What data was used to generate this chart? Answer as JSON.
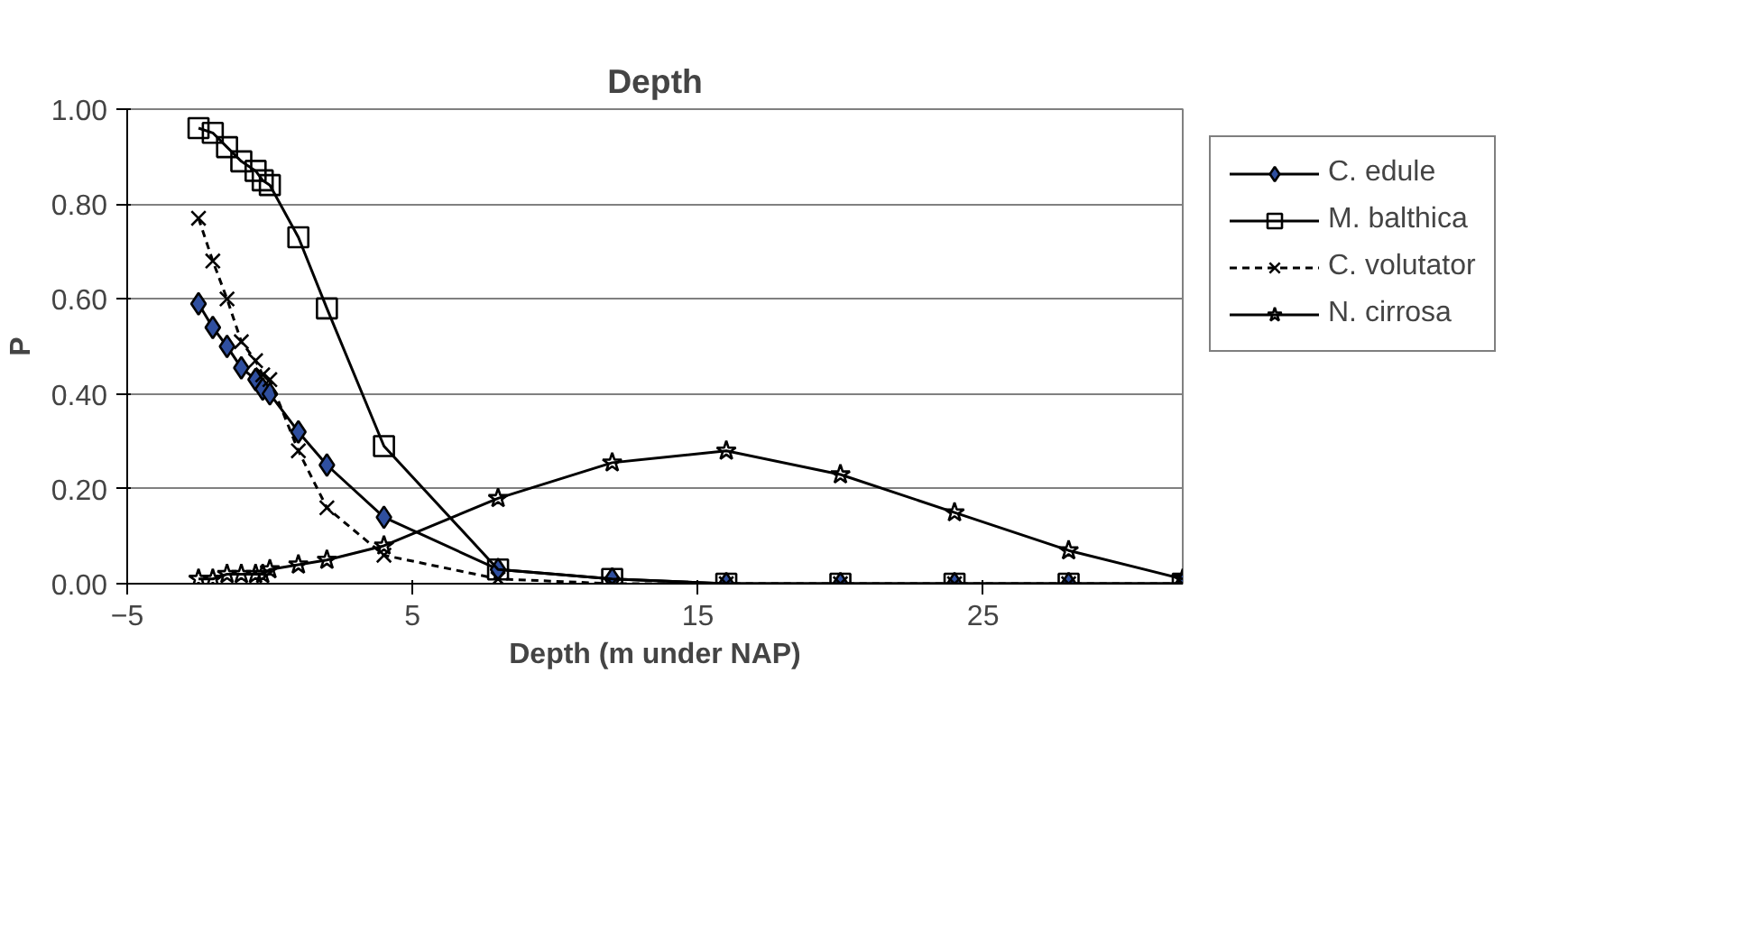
{
  "chart_data": {
    "type": "line",
    "title": "Depth",
    "xlabel": "Depth (m under NAP)",
    "ylabel": "P",
    "x": [
      -2.5,
      -2,
      -1.5,
      -1,
      -0.5,
      -0.25,
      0,
      1,
      2,
      4,
      8,
      12,
      16,
      20,
      24,
      28,
      32
    ],
    "xlim": [
      -5,
      32
    ],
    "xticks": [
      -5,
      5,
      15,
      25
    ],
    "ylim": [
      0,
      1
    ],
    "yticks": [
      {
        "value": 0,
        "label": "0.00"
      },
      {
        "value": 0.2,
        "label": "0.20"
      },
      {
        "value": 0.4,
        "label": "0.40"
      },
      {
        "value": 0.6,
        "label": "0.60"
      },
      {
        "value": 0.8,
        "label": "0.80"
      },
      {
        "value": 1,
        "label": "1.00"
      }
    ],
    "grid": "y",
    "legend": "right",
    "series": [
      {
        "name": "C. edule",
        "color": "#2f4f9f",
        "marker": "diamond",
        "line_style": "solid",
        "values": [
          0.59,
          0.54,
          0.5,
          0.455,
          0.43,
          0.41,
          0.4,
          0.32,
          0.25,
          0.14,
          0.03,
          0.01,
          0,
          0,
          0,
          0,
          0
        ]
      },
      {
        "name": "M. balthica",
        "color": "#000000",
        "marker": "square",
        "line_style": "solid",
        "values": [
          0.96,
          0.95,
          0.92,
          0.89,
          0.87,
          0.85,
          0.84,
          0.73,
          0.58,
          0.29,
          0.03,
          0.01,
          0,
          0,
          0,
          0,
          0
        ]
      },
      {
        "name": "C. volutator",
        "color": "#000000",
        "marker": "cross",
        "line_style": "dotted",
        "values": [
          0.77,
          0.68,
          0.6,
          0.51,
          0.47,
          0.44,
          0.43,
          0.28,
          0.16,
          0.06,
          0.01,
          0,
          0,
          0,
          0,
          0,
          0
        ]
      },
      {
        "name": "N. cirrosa",
        "color": "#000000",
        "marker": "star",
        "line_style": "solid",
        "values": [
          0.01,
          0.01,
          0.02,
          0.02,
          0.02,
          0.02,
          0.03,
          0.04,
          0.05,
          0.08,
          0.18,
          0.255,
          0.28,
          0.23,
          0.15,
          0.07,
          0.01
        ]
      }
    ]
  }
}
